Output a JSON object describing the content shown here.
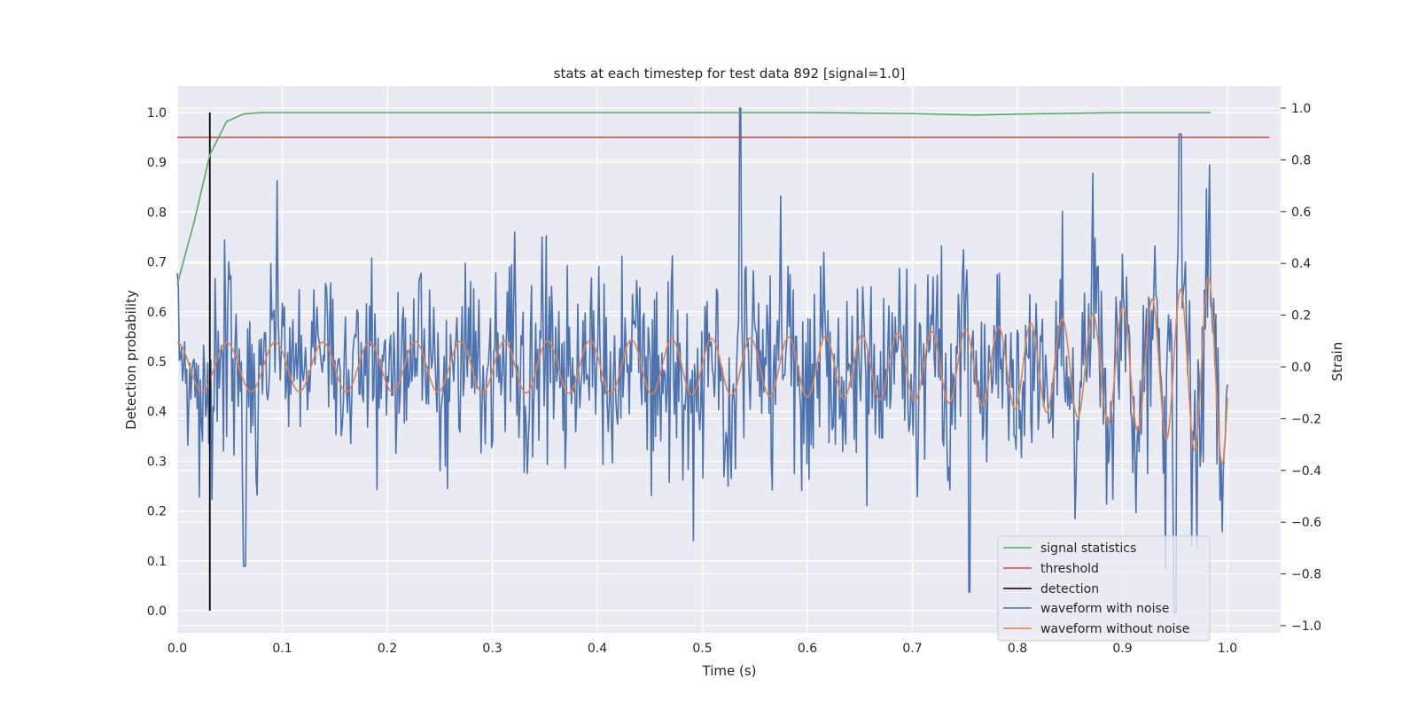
{
  "chart_data": {
    "type": "line",
    "title": "stats at each timestep for test data 892 [signal=1.0]",
    "xlabel": "Time (s)",
    "ylabel_left": "Detection probability",
    "ylabel_right": "Strain",
    "xlim": [
      0.0,
      1.05
    ],
    "ylim_left": [
      -0.04,
      1.05
    ],
    "ylim_right": [
      -1.05,
      1.1
    ],
    "x_ticks": [
      "0.0",
      "0.1",
      "0.2",
      "0.3",
      "0.4",
      "0.5",
      "0.6",
      "0.7",
      "0.8",
      "0.9",
      "1.0"
    ],
    "y_left_ticks": [
      "0.0",
      "0.1",
      "0.2",
      "0.3",
      "0.4",
      "0.5",
      "0.6",
      "0.7",
      "0.8",
      "0.9",
      "1.0"
    ],
    "y_right_ticks": [
      "−1.0",
      "−0.8",
      "−0.6",
      "−0.4",
      "−0.2",
      "0.0",
      "0.2",
      "0.4",
      "0.6",
      "0.8",
      "1.0"
    ],
    "grid": true,
    "legend_position": "bottom-right",
    "colors": {
      "signal_statistics": "#55a868",
      "threshold": "#c44e52",
      "detection": "#000000",
      "waveform_with_noise": "#4c72b0",
      "waveform_without_noise": "#dd8452",
      "background": "#eaeaf2",
      "grid": "#ffffff"
    },
    "series": [
      {
        "name": "signal statistics",
        "axis": "left",
        "x": [
          0.0,
          0.016,
          0.031,
          0.047,
          0.063,
          0.08,
          0.2,
          0.4,
          0.6,
          0.7,
          0.76,
          0.8,
          0.9,
          0.984
        ],
        "y": [
          0.655,
          0.78,
          0.915,
          0.982,
          0.997,
          1.0,
          1.0,
          1.0,
          1.0,
          0.998,
          0.995,
          0.997,
          1.0,
          1.0
        ]
      },
      {
        "name": "threshold",
        "axis": "left",
        "x": [
          0.0,
          1.04
        ],
        "y": [
          0.95,
          0.95
        ]
      },
      {
        "name": "detection",
        "axis": "left",
        "x": [
          0.031,
          0.031
        ],
        "y": [
          0.0,
          1.0
        ]
      },
      {
        "name": "waveform with noise",
        "axis": "right",
        "samples": 1000,
        "amplitude_approx": [
          -0.95,
          1.0
        ]
      },
      {
        "name": "waveform without noise",
        "axis": "right",
        "model": "chirp",
        "approx_peaks": [
          {
            "t": 0.045,
            "strain": 0.1
          },
          {
            "t": 0.5,
            "strain": 0.15
          },
          {
            "t": 0.9,
            "strain": 0.3
          },
          {
            "t": 0.99,
            "strain": 0.36
          }
        ]
      }
    ],
    "legend": [
      {
        "label": "signal statistics",
        "key": "signal_statistics"
      },
      {
        "label": "threshold",
        "key": "threshold"
      },
      {
        "label": "detection",
        "key": "detection"
      },
      {
        "label": "waveform with noise",
        "key": "waveform_with_noise"
      },
      {
        "label": "waveform without noise",
        "key": "waveform_without_noise"
      }
    ]
  }
}
